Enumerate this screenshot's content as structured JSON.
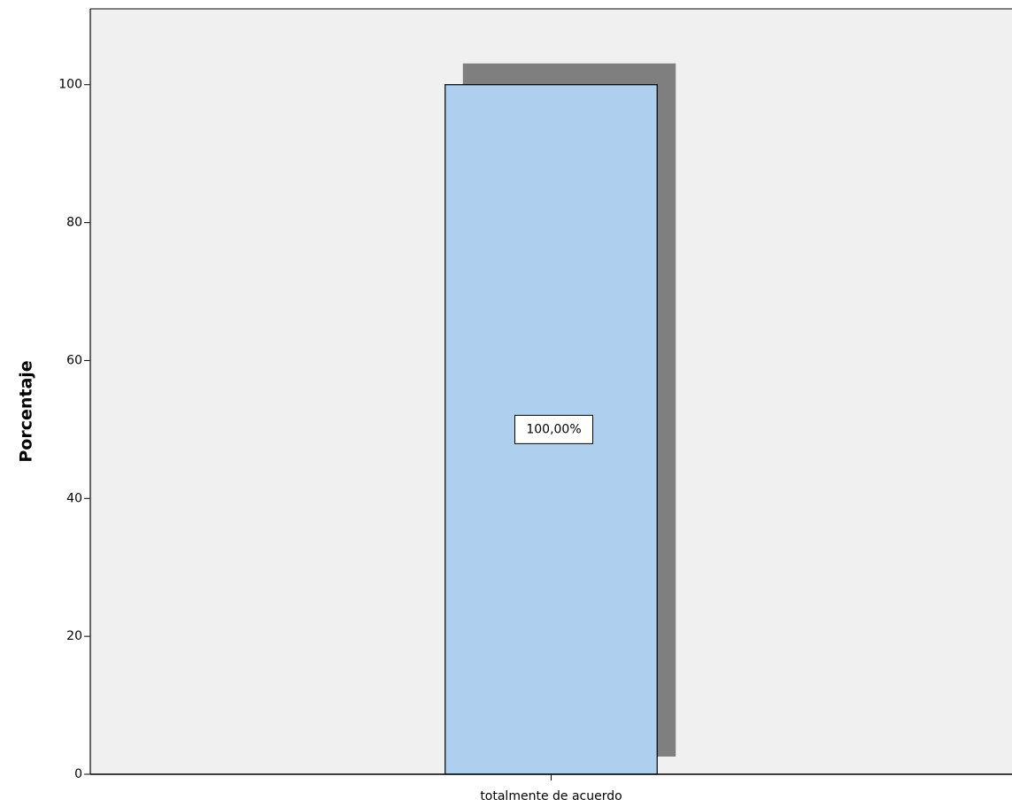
{
  "chart_data": {
    "type": "bar",
    "y_label": "Porcentaje",
    "categories": [
      "totalmente de acuerdo"
    ],
    "values": [
      100
    ],
    "value_labels": [
      "100,00%"
    ],
    "color": "#aecfee",
    "ylim": [
      0,
      111
    ],
    "yticks": [
      0,
      20,
      40,
      60,
      80,
      100
    ],
    "grid": false
  }
}
